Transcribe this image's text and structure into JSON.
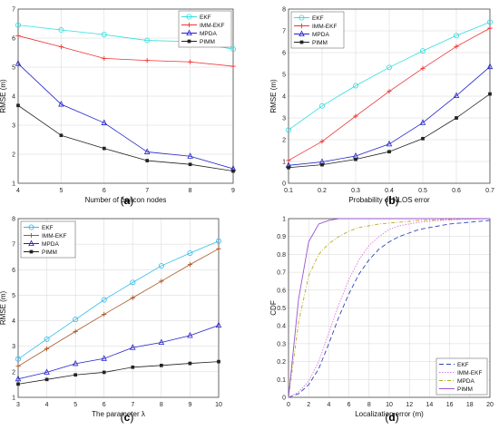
{
  "chart_data": [
    {
      "type": "line",
      "caption": "(a)",
      "xlabel": "Number of beacon nodes",
      "ylabel": "RMSE (m)",
      "xlim": [
        4,
        9
      ],
      "ylim": [
        1,
        7
      ],
      "xticks": [
        4,
        5,
        6,
        7,
        8,
        9
      ],
      "yticks": [
        1,
        2,
        3,
        4,
        5,
        6,
        7
      ],
      "grid": true,
      "legend_position": "top-right",
      "x": [
        4,
        5,
        6,
        7,
        8,
        9
      ],
      "series": [
        {
          "name": "EKF",
          "values": [
            6.45,
            6.28,
            6.12,
            5.92,
            5.88,
            5.62
          ],
          "color": "#33dddd",
          "marker": "circle",
          "dash": ""
        },
        {
          "name": "IMM-EKF",
          "values": [
            6.08,
            5.7,
            5.3,
            5.23,
            5.18,
            5.03
          ],
          "color": "#ee3333",
          "marker": "plus",
          "dash": ""
        },
        {
          "name": "MPDA",
          "values": [
            5.12,
            3.72,
            3.08,
            2.08,
            1.93,
            1.5
          ],
          "color": "#2222cc",
          "marker": "triangle",
          "dash": ""
        },
        {
          "name": "PIMM",
          "values": [
            3.68,
            2.65,
            2.2,
            1.78,
            1.65,
            1.42
          ],
          "color": "#222222",
          "marker": "square",
          "dash": ""
        }
      ]
    },
    {
      "type": "line",
      "caption": "(b)",
      "xlabel": "Probability of NLOS error",
      "ylabel": "RMSE (m)",
      "xlim": [
        0.1,
        0.7
      ],
      "ylim": [
        0,
        8
      ],
      "xticks": [
        0.1,
        0.2,
        0.3,
        0.4,
        0.5,
        0.6,
        0.7
      ],
      "yticks": [
        0,
        1,
        2,
        3,
        4,
        5,
        6,
        7,
        8
      ],
      "grid": true,
      "legend_position": "top-left",
      "x": [
        0.1,
        0.2,
        0.3,
        0.4,
        0.5,
        0.6,
        0.7
      ],
      "series": [
        {
          "name": "EKF",
          "values": [
            2.45,
            3.55,
            4.48,
            5.32,
            6.08,
            6.78,
            7.4
          ],
          "color": "#33dddd",
          "marker": "circle",
          "dash": ""
        },
        {
          "name": "IMM-EKF",
          "values": [
            1.05,
            1.92,
            3.08,
            4.22,
            5.28,
            6.28,
            7.12
          ],
          "color": "#ee3333",
          "marker": "plus",
          "dash": ""
        },
        {
          "name": "MPDA",
          "values": [
            0.82,
            0.98,
            1.25,
            1.8,
            2.78,
            4.02,
            5.35
          ],
          "color": "#2222cc",
          "marker": "triangle",
          "dash": ""
        },
        {
          "name": "PIMM",
          "values": [
            0.72,
            0.85,
            1.1,
            1.45,
            2.05,
            3.0,
            4.1
          ],
          "color": "#222222",
          "marker": "square",
          "dash": ""
        }
      ]
    },
    {
      "type": "line",
      "caption": "(c)",
      "xlabel": "The parameter λ",
      "ylabel": "RMSE (m)",
      "xlim": [
        3,
        10
      ],
      "ylim": [
        1,
        8
      ],
      "xticks": [
        3,
        4,
        5,
        6,
        7,
        8,
        9,
        10
      ],
      "yticks": [
        1,
        2,
        3,
        4,
        5,
        6,
        7,
        8
      ],
      "grid": true,
      "legend_position": "top-left",
      "x": [
        3,
        4,
        5,
        6,
        7,
        8,
        9,
        10
      ],
      "series": [
        {
          "name": "EKF",
          "values": [
            2.5,
            3.28,
            4.05,
            4.82,
            5.5,
            6.15,
            6.65,
            7.12
          ],
          "color": "#33bbee",
          "marker": "circle",
          "dash": ""
        },
        {
          "name": "IMM-EKF",
          "values": [
            2.22,
            2.9,
            3.58,
            4.25,
            4.9,
            5.55,
            6.2,
            6.82
          ],
          "color": "#aa5522",
          "marker": "plus",
          "dash": ""
        },
        {
          "name": "MPDA",
          "values": [
            1.72,
            1.98,
            2.32,
            2.52,
            2.95,
            3.15,
            3.42,
            3.82
          ],
          "color": "#2222cc",
          "marker": "triangle",
          "dash": ""
        },
        {
          "name": "PIMM",
          "values": [
            1.52,
            1.7,
            1.88,
            1.98,
            2.18,
            2.25,
            2.33,
            2.4
          ],
          "color": "#222222",
          "marker": "square",
          "dash": ""
        }
      ]
    },
    {
      "type": "line",
      "caption": "(d)",
      "xlabel": "Localization error (m)",
      "ylabel": "CDF",
      "xlim": [
        0,
        20
      ],
      "ylim": [
        0,
        1
      ],
      "xticks": [
        0,
        2,
        4,
        6,
        8,
        10,
        12,
        14,
        16,
        18,
        20
      ],
      "yticks": [
        0,
        0.1,
        0.2,
        0.3,
        0.4,
        0.5,
        0.6,
        0.7,
        0.8,
        0.9,
        1
      ],
      "grid": true,
      "legend_position": "bottom-right",
      "x": [
        0,
        1,
        2,
        3,
        4,
        5,
        6,
        7,
        8,
        9,
        10,
        11,
        12,
        13,
        14,
        15,
        16,
        17,
        18,
        19,
        20
      ],
      "series": [
        {
          "name": "EKF",
          "values": [
            0,
            0.02,
            0.07,
            0.16,
            0.3,
            0.45,
            0.58,
            0.69,
            0.77,
            0.83,
            0.87,
            0.9,
            0.92,
            0.94,
            0.95,
            0.96,
            0.97,
            0.975,
            0.98,
            0.985,
            0.99
          ],
          "color": "#3344bb",
          "marker": "none",
          "dash": "5,3"
        },
        {
          "name": "IMM-EKF",
          "values": [
            0,
            0.03,
            0.09,
            0.2,
            0.36,
            0.52,
            0.66,
            0.77,
            0.85,
            0.9,
            0.94,
            0.96,
            0.97,
            0.98,
            0.985,
            0.99,
            0.992,
            0.995,
            0.997,
            0.998,
            1
          ],
          "color": "#dd77dd",
          "marker": "none",
          "dash": "1.5,1.5"
        },
        {
          "name": "MPDA",
          "values": [
            0,
            0.42,
            0.68,
            0.8,
            0.86,
            0.9,
            0.93,
            0.95,
            0.96,
            0.97,
            0.975,
            0.98,
            0.985,
            0.99,
            0.992,
            0.994,
            0.996,
            0.998,
            0.999,
            1,
            1
          ],
          "color": "#bbaa22",
          "marker": "none",
          "dash": "4,2,1,2"
        },
        {
          "name": "PIMM",
          "values": [
            0,
            0.55,
            0.87,
            0.97,
            0.99,
            1,
            1,
            1,
            1,
            1,
            1,
            1,
            1,
            1,
            1,
            1,
            1,
            1,
            1,
            1,
            1
          ],
          "color": "#9955cc",
          "marker": "none",
          "dash": ""
        }
      ]
    }
  ]
}
